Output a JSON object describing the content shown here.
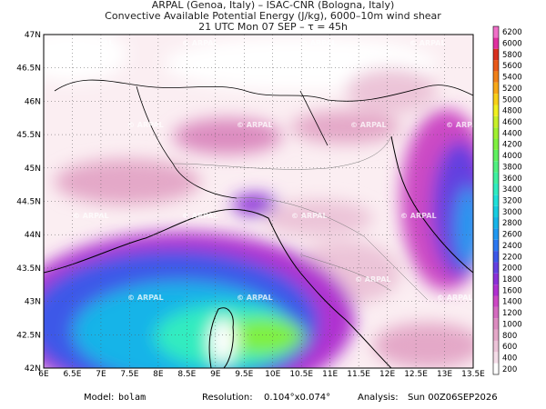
{
  "header": {
    "lines": [
      "ARPAL (Genoa, Italy)  –  ISAC-CNR (Bologna, Italy)",
      "Convective Available Potential Energy (J/kg), 6000–10m wind shear",
      "21 UTC Mon 07 SEP  –  τ = 45h"
    ]
  },
  "map": {
    "lat_ticks": [
      "47N",
      "46.5N",
      "46N",
      "45.5N",
      "45N",
      "44.5N",
      "44N",
      "43.5N",
      "43N",
      "42.5N",
      "42N"
    ],
    "lon_ticks": [
      "6E",
      "6.5E",
      "7E",
      "7.5E",
      "8E",
      "8.5E",
      "9E",
      "9.5E",
      "10E",
      "10.5E",
      "11E",
      "11.5E",
      "12E",
      "12.5E",
      "13E",
      "13.5E"
    ],
    "watermark": "© ARPAL"
  },
  "colorbar": {
    "levels": [
      200,
      400,
      600,
      800,
      1000,
      1200,
      1400,
      1600,
      1800,
      2000,
      2200,
      2400,
      2600,
      2800,
      3000,
      3200,
      3400,
      3600,
      3800,
      4000,
      4200,
      4400,
      4600,
      4800,
      5000,
      5200,
      5400,
      5600,
      5800,
      6000,
      6200
    ],
    "colors": [
      "#ffffff",
      "#f4dde8",
      "#ecc4d8",
      "#e4a8c8",
      "#dc8cc0",
      "#d46cc0",
      "#cc48c4",
      "#b030d0",
      "#8c30d8",
      "#6440e0",
      "#3c58e8",
      "#2c78f0",
      "#2098f0",
      "#18b4e8",
      "#18cce0",
      "#20e0d8",
      "#30ecc0",
      "#40f0a0",
      "#50f080",
      "#60f060",
      "#80f040",
      "#a0f030",
      "#c8f028",
      "#f0f020",
      "#f8d018",
      "#f8a818",
      "#f08018",
      "#e85818",
      "#d83020",
      "#e030a0",
      "#f070c8"
    ]
  },
  "footer": {
    "model_label": "Model:",
    "model": "bolam",
    "resolution_label": "Resolution:",
    "resolution": "0.104°x0.074°",
    "analysis_label": "Analysis:",
    "analysis": "Sun 00Z06SEP2026"
  }
}
